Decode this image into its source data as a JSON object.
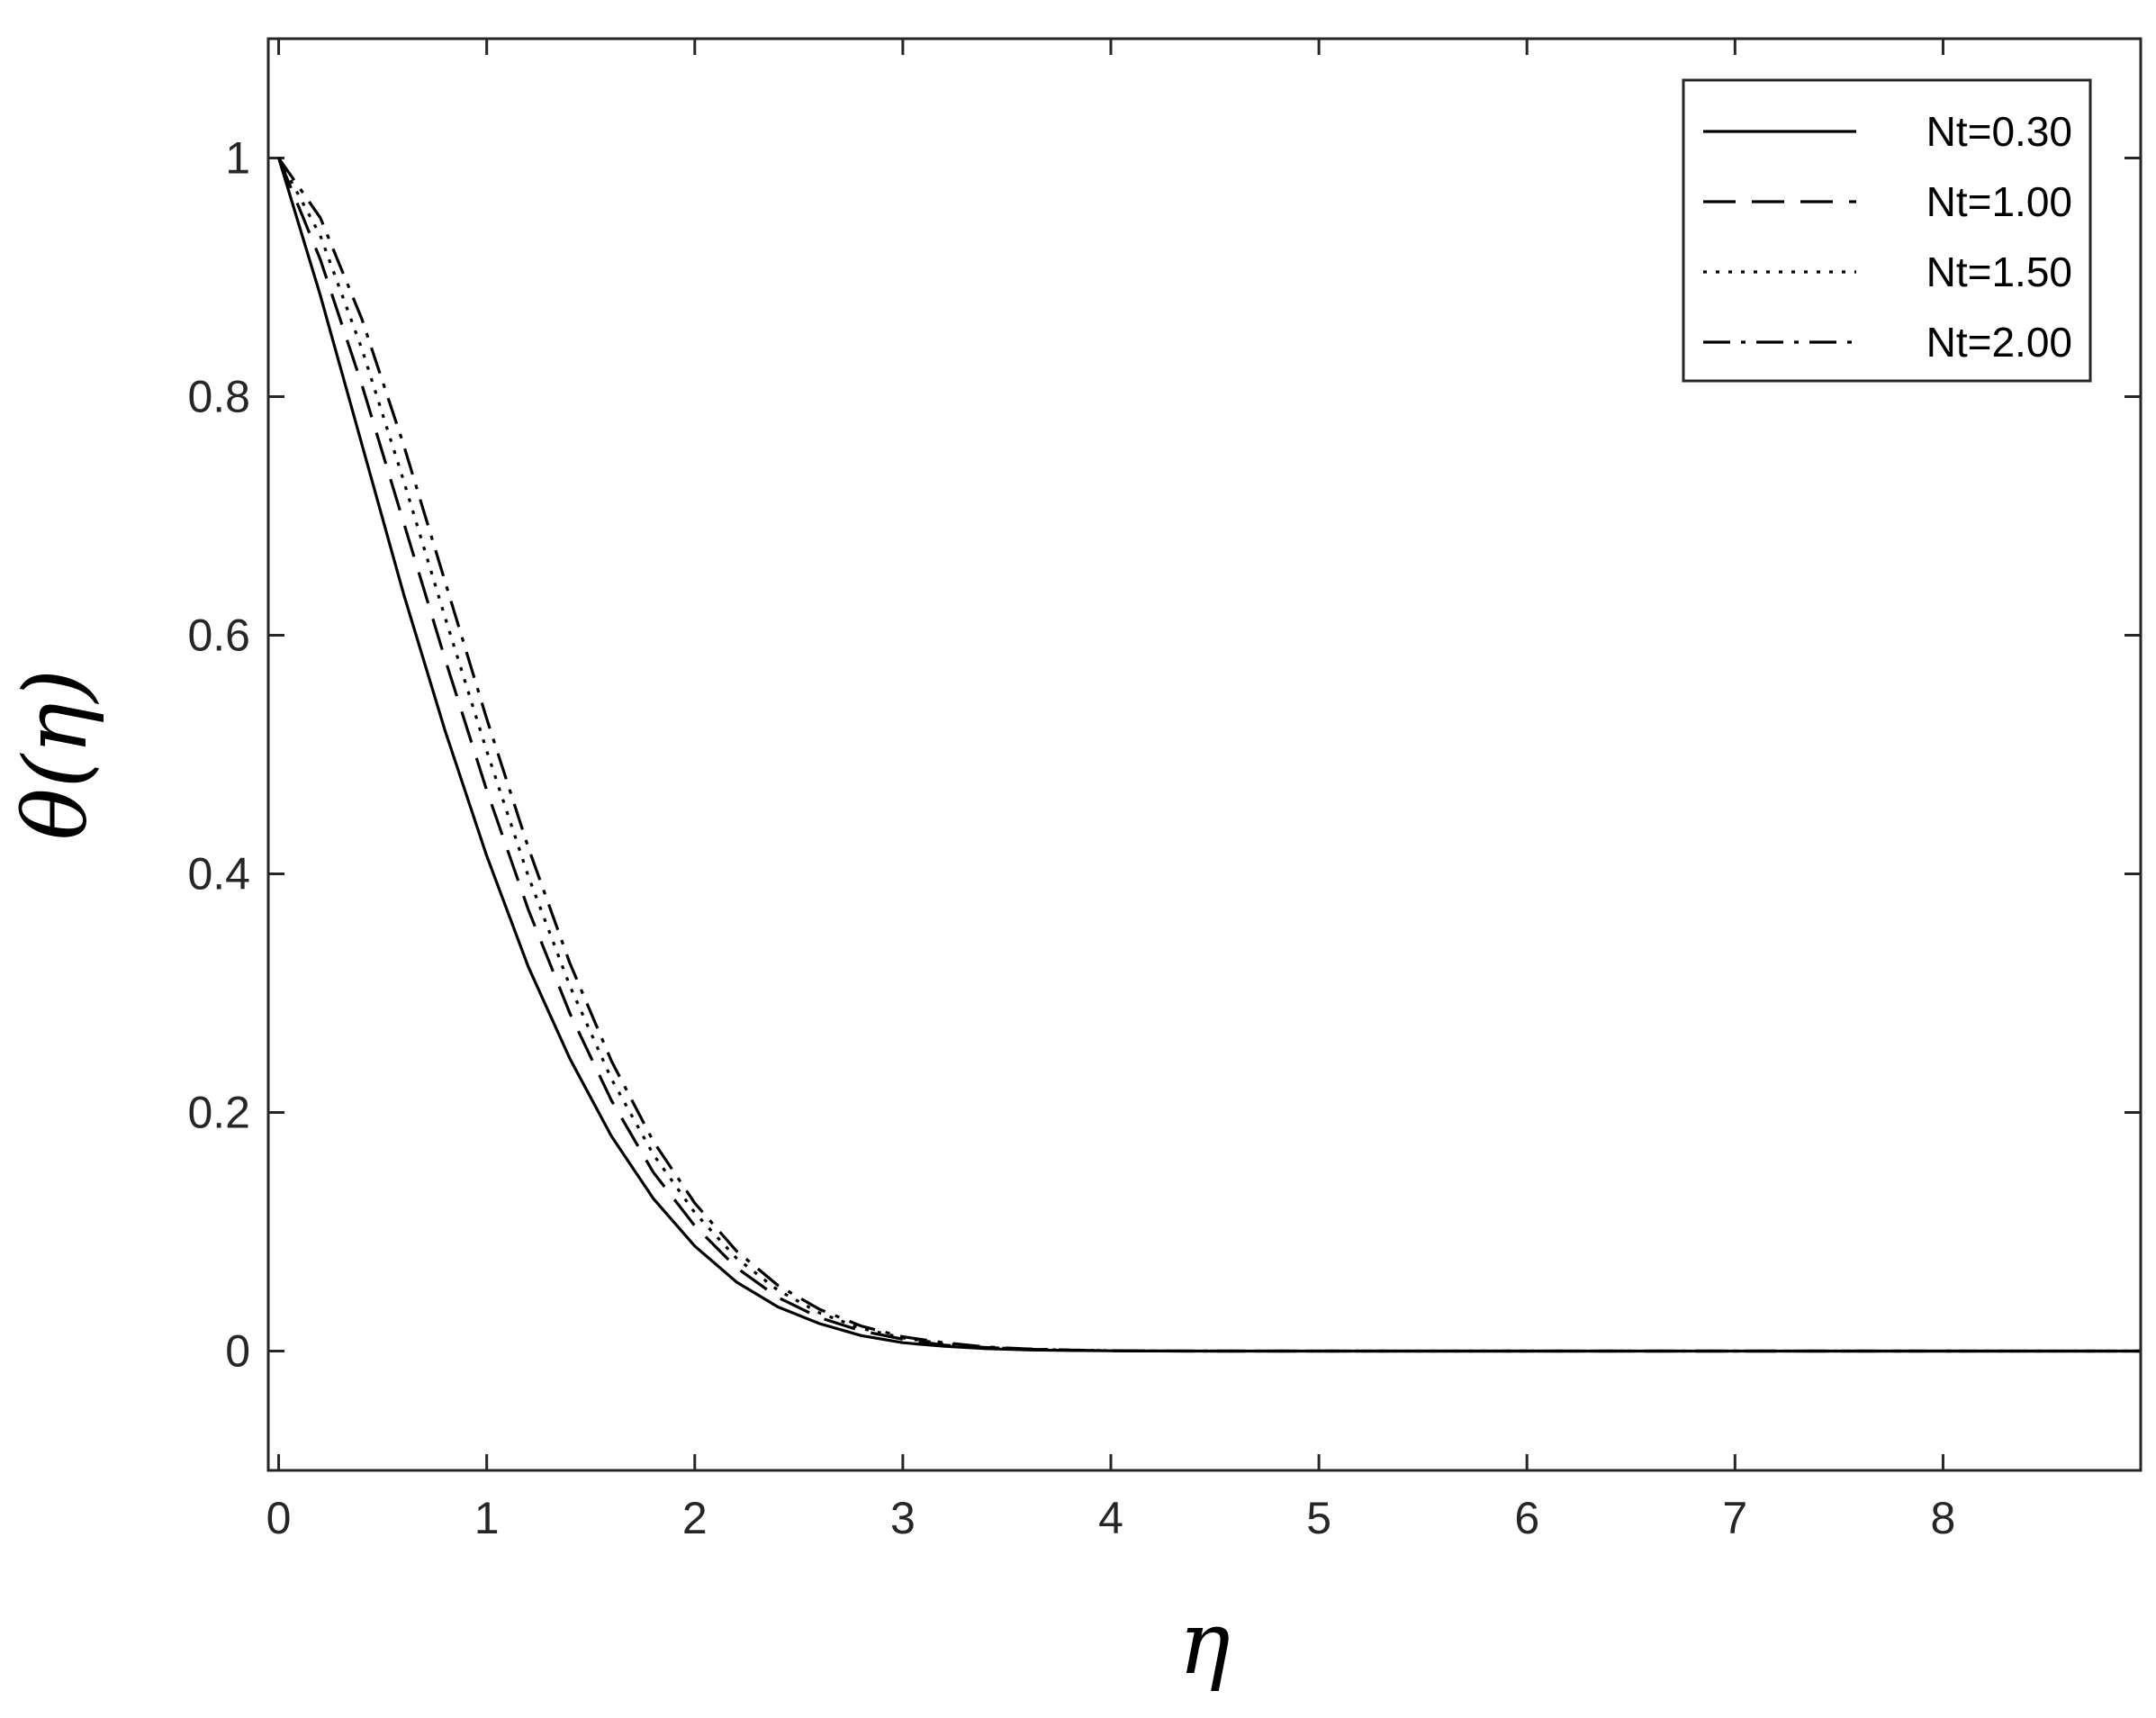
{
  "chart_data": {
    "type": "line",
    "title": "",
    "xlabel": "η",
    "ylabel": "θ(η)",
    "xlim": [
      -0.05,
      8.95
    ],
    "ylim": [
      -0.1,
      1.1
    ],
    "xticks": [
      "0",
      "1",
      "2",
      "3",
      "4",
      "5",
      "6",
      "7",
      "8"
    ],
    "yticks": [
      "0",
      "0.2",
      "0.4",
      "0.6",
      "0.8",
      "1"
    ],
    "grid": false,
    "legend_position": "top-right",
    "x": [
      0,
      0.2,
      0.4,
      0.6,
      0.8,
      1.0,
      1.2,
      1.4,
      1.6,
      1.8,
      2.0,
      2.2,
      2.4,
      2.6,
      2.8,
      3.0,
      3.2,
      3.4,
      3.6,
      3.8,
      4.0,
      4.2,
      4.5,
      5,
      6,
      7,
      8,
      8.95
    ],
    "series": [
      {
        "name": "Nt=0.30",
        "dash": "solid",
        "values": [
          1.0,
          0.885,
          0.76,
          0.635,
          0.52,
          0.415,
          0.322,
          0.245,
          0.18,
          0.128,
          0.088,
          0.058,
          0.037,
          0.023,
          0.013,
          0.007,
          0.004,
          0.002,
          0.001,
          0.0005,
          0.0002,
          0.0001,
          0,
          0,
          0,
          0,
          0,
          0
        ]
      },
      {
        "name": "Nt=1.00",
        "dash": "dashed",
        "values": [
          1.0,
          0.915,
          0.81,
          0.695,
          0.58,
          0.47,
          0.37,
          0.283,
          0.21,
          0.15,
          0.105,
          0.07,
          0.045,
          0.028,
          0.017,
          0.01,
          0.005,
          0.003,
          0.0015,
          0.0007,
          0.0003,
          0.0001,
          0,
          0,
          0,
          0,
          0,
          0
        ]
      },
      {
        "name": "Nt=1.50",
        "dash": "dotted",
        "values": [
          1.0,
          0.935,
          0.84,
          0.73,
          0.615,
          0.503,
          0.398,
          0.306,
          0.228,
          0.165,
          0.116,
          0.078,
          0.051,
          0.032,
          0.019,
          0.011,
          0.006,
          0.003,
          0.0016,
          0.0008,
          0.0004,
          0.0001,
          0,
          0,
          0,
          0,
          0,
          0
        ]
      },
      {
        "name": "Nt=2.00",
        "dash": "dashdot",
        "values": [
          1.0,
          0.95,
          0.865,
          0.76,
          0.645,
          0.53,
          0.422,
          0.325,
          0.243,
          0.176,
          0.124,
          0.084,
          0.055,
          0.035,
          0.021,
          0.012,
          0.007,
          0.0035,
          0.0018,
          0.0009,
          0.0004,
          0.0001,
          0,
          0,
          0,
          0,
          0,
          0
        ]
      }
    ]
  }
}
